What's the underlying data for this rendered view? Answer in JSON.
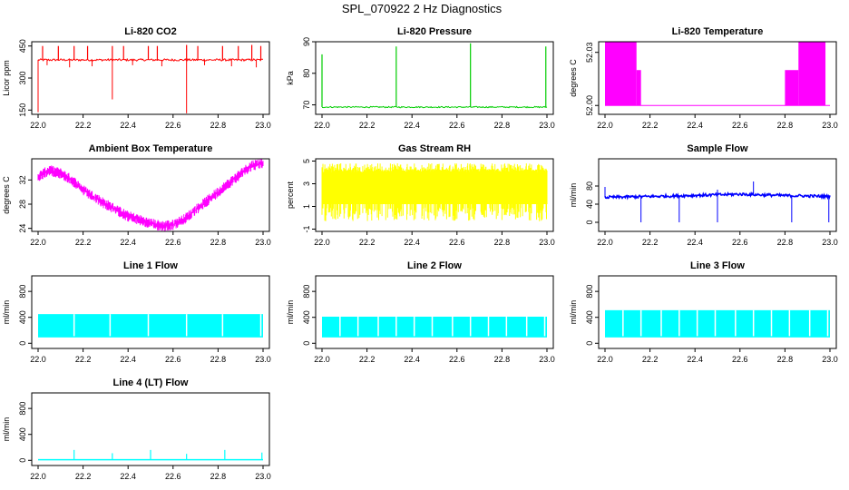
{
  "title": "SPL_070922  2 Hz Diagnostics",
  "colors": {
    "red": "#ff0000",
    "green": "#00cd00",
    "magenta": "#ff00ff",
    "yellow": "#ffff00",
    "blue": "#0000ff",
    "cyan": "#00ffff",
    "axis": "#000000"
  },
  "chart_data": [
    {
      "type": "line",
      "title": "Li-820 CO2",
      "ylabel": "Licor ppm",
      "color": "red",
      "xlim": [
        22.0,
        23.0
      ],
      "ylim": [
        130,
        470
      ],
      "x_ticks": [
        "22.0",
        "22.2",
        "22.4",
        "22.6",
        "22.8",
        "23.0"
      ],
      "y_ticks": [
        "150",
        "300",
        "450"
      ],
      "series": [
        {
          "name": "CO2",
          "baseline": 385,
          "noise": 5,
          "spikes": [
            [
              22.02,
              450
            ],
            [
              22.09,
              450
            ],
            [
              22.16,
              450
            ],
            [
              22.22,
              450
            ],
            [
              22.33,
              450
            ],
            [
              22.38,
              450
            ],
            [
              22.49,
              450
            ],
            [
              22.53,
              450
            ],
            [
              22.66,
              455
            ],
            [
              22.71,
              450
            ],
            [
              22.82,
              450
            ],
            [
              22.89,
              450
            ],
            [
              22.95,
              455
            ],
            [
              22.99,
              450
            ]
          ],
          "dips": [
            [
              22.0,
              140
            ],
            [
              22.33,
              200
            ],
            [
              22.66,
              135
            ],
            [
              22.04,
              360
            ],
            [
              22.14,
              350
            ],
            [
              22.24,
              355
            ],
            [
              22.42,
              360
            ],
            [
              22.55,
              355
            ],
            [
              22.74,
              360
            ],
            [
              22.86,
              355
            ],
            [
              22.97,
              350
            ]
          ]
        }
      ]
    },
    {
      "type": "line",
      "title": "Li-820 Pressure",
      "ylabel": "kPa",
      "color": "green",
      "xlim": [
        22.0,
        23.0
      ],
      "ylim": [
        67,
        90
      ],
      "x_ticks": [
        "22.0",
        "22.2",
        "22.4",
        "22.6",
        "22.8",
        "23.0"
      ],
      "y_ticks": [
        "70",
        "80",
        "90"
      ],
      "series": [
        {
          "name": "pressure",
          "baseline": 69.3,
          "noise": 0.2,
          "spikes": [
            [
              22.0,
              86
            ],
            [
              22.33,
              88.5
            ],
            [
              22.66,
              89.5
            ],
            [
              22.995,
              88.5
            ]
          ],
          "dips": []
        }
      ]
    },
    {
      "type": "area",
      "title": "Li-820 Temperature",
      "ylabel": "degrees C",
      "color": "magenta",
      "xlim": [
        22.0,
        23.0
      ],
      "ylim": [
        51.995,
        52.036
      ],
      "x_ticks": [
        "22.0",
        "22.2",
        "22.4",
        "22.6",
        "22.8",
        "23.0"
      ],
      "y_ticks": [
        "52.00",
        "52.03"
      ],
      "series": [
        {
          "name": "temperature",
          "baseline": 52.0,
          "segments": [
            [
              22.0,
              22.14,
              52.036
            ],
            [
              22.14,
              22.16,
              52.02
            ],
            [
              22.8,
              22.86,
              52.02
            ],
            [
              22.86,
              22.98,
              52.036
            ]
          ]
        }
      ]
    },
    {
      "type": "line",
      "title": "Ambient Box Temperature",
      "ylabel": "degrees C",
      "color": "magenta",
      "xlim": [
        22.0,
        23.0
      ],
      "ylim": [
        23.5,
        35.5
      ],
      "x_ticks": [
        "22.0",
        "22.2",
        "22.4",
        "22.6",
        "22.8",
        "23.0"
      ],
      "y_ticks": [
        "24",
        "28",
        "32"
      ],
      "series": [
        {
          "name": "box temperature",
          "band": 0.9,
          "points": [
            [
              22.0,
              32.5
            ],
            [
              22.05,
              33.6
            ],
            [
              22.1,
              33.1
            ],
            [
              22.15,
              32.0
            ],
            [
              22.2,
              30.3
            ],
            [
              22.3,
              28.0
            ],
            [
              22.4,
              26.0
            ],
            [
              22.5,
              24.8
            ],
            [
              22.55,
              24.4
            ],
            [
              22.6,
              24.6
            ],
            [
              22.65,
              25.5
            ],
            [
              22.7,
              27.0
            ],
            [
              22.8,
              30.0
            ],
            [
              22.9,
              33.0
            ],
            [
              22.95,
              34.4
            ],
            [
              23.0,
              34.8
            ]
          ]
        }
      ]
    },
    {
      "type": "line",
      "title": "Gas Stream RH",
      "ylabel": "percent",
      "color": "yellow",
      "xlim": [
        22.0,
        23.0
      ],
      "ylim": [
        -1.2,
        5.2
      ],
      "x_ticks": [
        "22.0",
        "22.2",
        "22.4",
        "22.6",
        "22.8",
        "23.0"
      ],
      "y_ticks": [
        "-1",
        "1",
        "3",
        "5"
      ],
      "series": [
        {
          "name": "RH",
          "low": -0.3,
          "high": 4.8,
          "dense_band": [
            1.2,
            4.0
          ]
        }
      ]
    },
    {
      "type": "line",
      "title": "Sample Flow",
      "ylabel": "ml/min",
      "color": "blue",
      "xlim": [
        22.0,
        23.0
      ],
      "ylim": [
        -20,
        140
      ],
      "x_ticks": [
        "22.0",
        "22.2",
        "22.4",
        "22.6",
        "22.8",
        "23.0"
      ],
      "y_ticks": [
        "0",
        "40",
        "80"
      ],
      "series": [
        {
          "name": "sample flow",
          "trend": [
            [
              22.0,
              55
            ],
            [
              22.3,
              58
            ],
            [
              22.6,
              62
            ],
            [
              22.8,
              59
            ],
            [
              23.0,
              57
            ]
          ],
          "noise": 3,
          "dips": [
            22.16,
            22.33,
            22.5,
            22.83,
            22.995
          ],
          "spikes": [
            [
              22.0,
              78
            ],
            [
              22.5,
              72
            ],
            [
              22.66,
              90
            ]
          ]
        }
      ]
    },
    {
      "type": "area",
      "title": "Line 1 Flow",
      "ylabel": "ml/min",
      "color": "cyan",
      "xlim": [
        22.0,
        23.0
      ],
      "ylim": [
        -80,
        1040
      ],
      "x_ticks": [
        "22.0",
        "22.2",
        "22.4",
        "22.6",
        "22.8",
        "23.0"
      ],
      "y_ticks": [
        "0",
        "400",
        "800"
      ],
      "series": [
        {
          "name": "line 1",
          "low": 90,
          "high": 450,
          "gaps": [
            22.16,
            22.32,
            22.49,
            22.66,
            22.82,
            22.99
          ]
        }
      ]
    },
    {
      "type": "area",
      "title": "Line 2 Flow",
      "ylabel": "ml/min",
      "color": "cyan",
      "xlim": [
        22.0,
        23.0
      ],
      "ylim": [
        -80,
        1040
      ],
      "x_ticks": [
        "22.0",
        "22.2",
        "22.4",
        "22.6",
        "22.8",
        "23.0"
      ],
      "y_ticks": [
        "0",
        "400",
        "800"
      ],
      "series": [
        {
          "name": "line 2",
          "low": 90,
          "high": 410,
          "gaps": [
            22.08,
            22.16,
            22.25,
            22.33,
            22.41,
            22.49,
            22.58,
            22.66,
            22.74,
            22.82,
            22.91,
            22.99
          ]
        }
      ]
    },
    {
      "type": "area",
      "title": "Line 3 Flow",
      "ylabel": "ml/min",
      "color": "cyan",
      "xlim": [
        22.0,
        23.0
      ],
      "ylim": [
        -80,
        1040
      ],
      "x_ticks": [
        "22.0",
        "22.2",
        "22.4",
        "22.6",
        "22.8",
        "23.0"
      ],
      "y_ticks": [
        "0",
        "400",
        "800"
      ],
      "series": [
        {
          "name": "line 3",
          "low": 90,
          "high": 510,
          "gaps": [
            22.08,
            22.16,
            22.25,
            22.33,
            22.41,
            22.49,
            22.58,
            22.66,
            22.74,
            22.82,
            22.91,
            22.99
          ]
        }
      ]
    },
    {
      "type": "line",
      "title": "Line 4 (LT) Flow",
      "ylabel": "ml/min",
      "color": "cyan",
      "xlim": [
        22.0,
        23.0
      ],
      "ylim": [
        -80,
        1040
      ],
      "x_ticks": [
        "22.0",
        "22.2",
        "22.4",
        "22.6",
        "22.8",
        "23.0"
      ],
      "y_ticks": [
        "0",
        "400",
        "800"
      ],
      "series": [
        {
          "name": "line 4",
          "baseline": 10,
          "spikes": [
            [
              22.16,
              160
            ],
            [
              22.33,
              110
            ],
            [
              22.5,
              160
            ],
            [
              22.66,
              100
            ],
            [
              22.83,
              160
            ],
            [
              22.995,
              120
            ]
          ]
        }
      ]
    }
  ]
}
